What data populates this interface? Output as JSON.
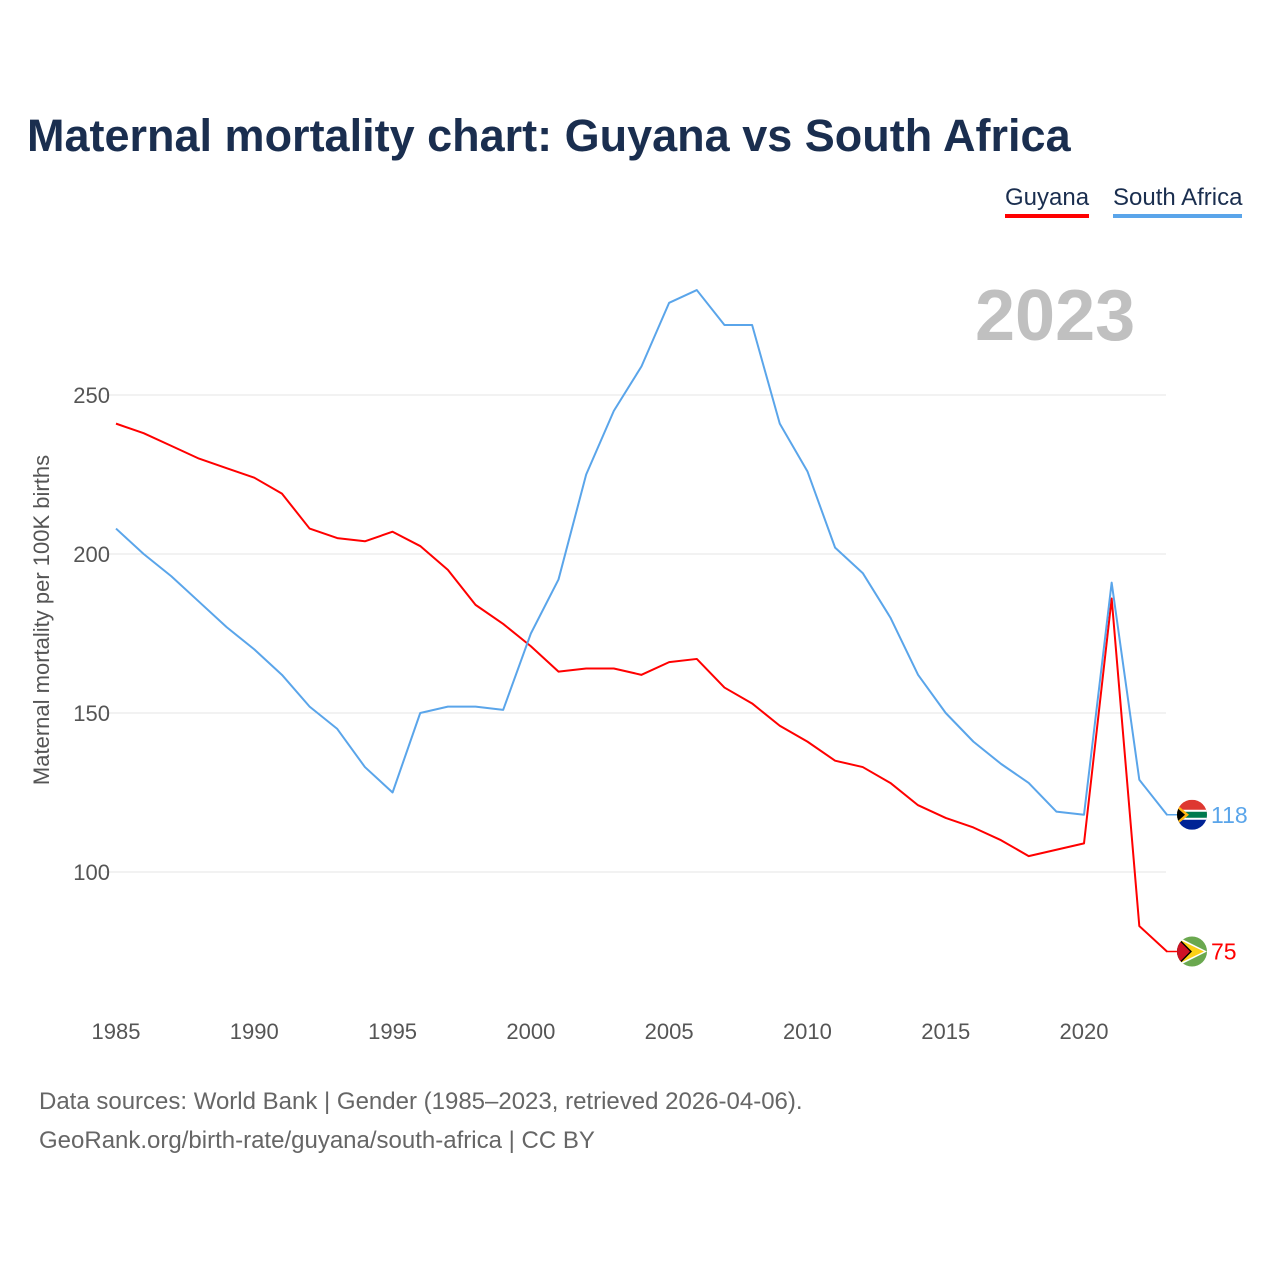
{
  "chart_data": {
    "type": "line",
    "title": "Maternal mortality chart: Guyana vs South Africa",
    "ylabel": "Maternal mortality per 100K births",
    "xlabel": "",
    "current_year": "2023",
    "x": [
      1985,
      1986,
      1987,
      1988,
      1989,
      1990,
      1991,
      1992,
      1993,
      1994,
      1995,
      1996,
      1997,
      1998,
      1999,
      2000,
      2001,
      2002,
      2003,
      2004,
      2005,
      2006,
      2007,
      2008,
      2009,
      2010,
      2011,
      2012,
      2013,
      2014,
      2015,
      2016,
      2017,
      2018,
      2019,
      2020,
      2021,
      2022,
      2023
    ],
    "xticks": [
      "1985",
      "1990",
      "1995",
      "2000",
      "2005",
      "2010",
      "2015",
      "2020"
    ],
    "yticks": [
      "100",
      "150",
      "200",
      "250"
    ],
    "ylim": [
      57,
      288
    ],
    "xlim": [
      1985,
      2023
    ],
    "grid": true,
    "legend_position": "top-right",
    "series": [
      {
        "name": "Guyana",
        "color": "#ff0000",
        "end_label": "75",
        "values": [
          241,
          238,
          234,
          230,
          227,
          224,
          219,
          208,
          205,
          204,
          207,
          202.5,
          195,
          184,
          178,
          171,
          163,
          164,
          164,
          162,
          166,
          167,
          158,
          153,
          146,
          141,
          135,
          133,
          128,
          121,
          117,
          114,
          110,
          105,
          107,
          109,
          186,
          83,
          75
        ]
      },
      {
        "name": "South Africa",
        "color": "#5aa5ea",
        "end_label": "118",
        "values": [
          208,
          200,
          193,
          185,
          177,
          170,
          162,
          152,
          145,
          133,
          125,
          150,
          152,
          152,
          151,
          175,
          192,
          225,
          245,
          259,
          279,
          283,
          272,
          272,
          241,
          226,
          202,
          194,
          180,
          162,
          150,
          141,
          134,
          128,
          119,
          118,
          191,
          129,
          118
        ]
      }
    ]
  },
  "footer": {
    "line1": "Data sources: World Bank | Gender (1985–2023, retrieved 2026-04-06).",
    "line2": "GeoRank.org/birth-rate/guyana/south-africa | CC BY"
  }
}
